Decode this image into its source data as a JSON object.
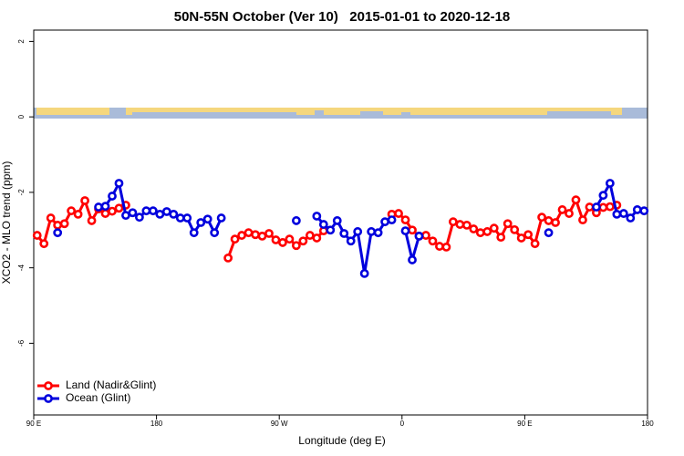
{
  "chart_data": {
    "type": "line",
    "title": "50N-55N October (Ver 10)   2015-01-01 to 2020-12-18",
    "xlabel": "Longitude (deg E)",
    "ylabel": "XCO2 - MLO trend (ppm)",
    "xlim": [
      90,
      540
    ],
    "ylim": [
      -7.9,
      2.3
    ],
    "xticks": [
      {
        "value": 90,
        "label": "90 E"
      },
      180,
      {
        "value": 270,
        "label": "90 W"
      },
      {
        "value": 360,
        "label": "0"
      },
      {
        "value": 450,
        "label": "90 E"
      },
      {
        "value": 540,
        "label": "180"
      }
    ],
    "yticks": [
      2,
      0,
      -2,
      -4,
      -6
    ],
    "legend": "bottom-left",
    "x": [
      92.5,
      97.5,
      102.5,
      107.5,
      112.5,
      117.5,
      122.5,
      127.5,
      132.5,
      137.5,
      142.5,
      147.5,
      152.5,
      157.5,
      162.5,
      167.5,
      172.5,
      177.5,
      182.5,
      187.5,
      192.5,
      197.5,
      202.5,
      207.5,
      212.5,
      217.5,
      222.5,
      227.5,
      232.5,
      237.5,
      242.5,
      247.5,
      252.5,
      257.5,
      262.5,
      267.5,
      272.5,
      277.5,
      282.5,
      287.5,
      292.5,
      297.5,
      302.5,
      307.5,
      312.5,
      317.5,
      322.5,
      327.5,
      332.5,
      337.5,
      342.5,
      347.5,
      352.5,
      357.5,
      362.5,
      367.5,
      372.5,
      377.5,
      382.5,
      387.5,
      392.5,
      397.5,
      402.5,
      407.5,
      412.5,
      417.5,
      422.5,
      427.5,
      432.5,
      437.5,
      442.5,
      447.5,
      452.5,
      457.5,
      462.5,
      467.5,
      472.5,
      477.5,
      482.5,
      487.5,
      492.5,
      497.5,
      502.5,
      507.5,
      512.5,
      517.5,
      522.5,
      527.5,
      532.5,
      537.5
    ],
    "series": [
      {
        "name": "Land (Nadir&Glint)",
        "color": "#ff0000",
        "values": [
          -3.14,
          -3.36,
          -2.68,
          -2.87,
          -2.83,
          -2.49,
          -2.58,
          -2.22,
          -2.75,
          -2.44,
          -2.56,
          -2.5,
          -2.42,
          -2.34,
          null,
          null,
          null,
          null,
          null,
          null,
          null,
          null,
          null,
          null,
          null,
          null,
          null,
          null,
          -3.74,
          -3.24,
          -3.14,
          -3.07,
          -3.12,
          -3.16,
          -3.09,
          -3.26,
          -3.33,
          -3.24,
          -3.41,
          -3.29,
          -3.14,
          -3.21,
          -3.02,
          null,
          null,
          null,
          null,
          null,
          null,
          null,
          null,
          null,
          -2.58,
          -2.56,
          -2.73,
          -3.0,
          -3.16,
          -3.14,
          -3.29,
          -3.43,
          -3.45,
          -2.78,
          -2.85,
          -2.87,
          -2.97,
          -3.07,
          -3.04,
          -2.95,
          -3.19,
          -2.83,
          -2.99,
          -3.21,
          -3.12,
          -3.36,
          -2.66,
          -2.75,
          -2.8,
          -2.46,
          -2.56,
          -2.2,
          -2.73,
          -2.39,
          -2.54,
          -2.4,
          -2.38,
          -2.34,
          null,
          null,
          null,
          null
        ]
      },
      {
        "name": "Ocean (Glint)",
        "color": "#0000dd",
        "values": [
          null,
          null,
          null,
          -3.07,
          null,
          null,
          null,
          null,
          null,
          -2.39,
          -2.37,
          -2.1,
          -1.76,
          -2.61,
          -2.54,
          -2.66,
          -2.49,
          -2.49,
          -2.58,
          -2.51,
          -2.58,
          -2.68,
          -2.68,
          -3.07,
          -2.8,
          -2.71,
          -3.07,
          -2.68,
          null,
          null,
          null,
          null,
          null,
          null,
          null,
          null,
          null,
          null,
          -2.75,
          null,
          null,
          -2.63,
          -2.85,
          -3.0,
          -2.75,
          -3.09,
          -3.29,
          -3.04,
          -4.15,
          -3.04,
          -3.07,
          -2.78,
          -2.73,
          null,
          -3.02,
          -3.79,
          -3.16,
          null,
          null,
          null,
          null,
          null,
          null,
          null,
          null,
          null,
          null,
          null,
          null,
          null,
          null,
          null,
          null,
          null,
          null,
          -3.07,
          null,
          null,
          null,
          null,
          null,
          null,
          -2.39,
          -2.08,
          -1.76,
          -2.58,
          -2.56,
          -2.68,
          -2.46,
          -2.49
        ]
      }
    ]
  }
}
